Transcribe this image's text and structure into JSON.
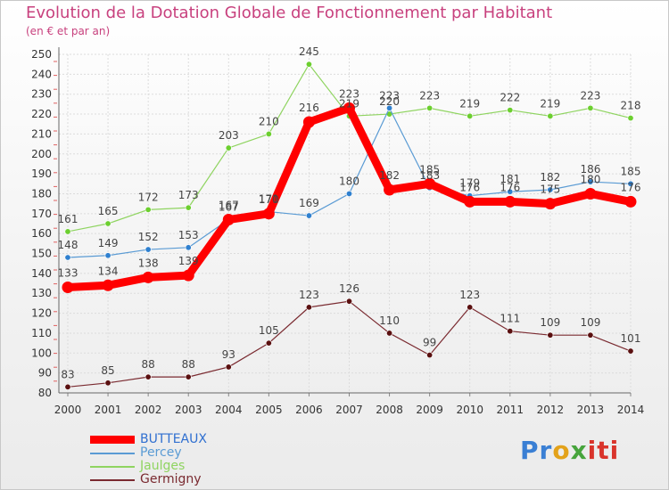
{
  "chart_data": {
    "type": "line",
    "title": "Evolution de la Dotation Globale de Fonctionnement par Habitant",
    "subtitle": "(en € et par an)",
    "xlabel": "",
    "ylabel": "",
    "x": [
      "2000",
      "2001",
      "2002",
      "2003",
      "2004",
      "2005",
      "2006",
      "2007",
      "2008",
      "2009",
      "2010",
      "2011",
      "2012",
      "2013",
      "2014"
    ],
    "ylim": [
      80,
      250
    ],
    "yticks": [
      80,
      90,
      100,
      110,
      120,
      130,
      140,
      150,
      160,
      170,
      180,
      190,
      200,
      210,
      220,
      230,
      240,
      250
    ],
    "grid": true,
    "legend_position": "bottom-left",
    "series": [
      {
        "name": "BUTTEAUX",
        "color": "#ff0000",
        "values": [
          133,
          134,
          138,
          139,
          167,
          170,
          216,
          223,
          182,
          185,
          176,
          176,
          175,
          180,
          176
        ]
      },
      {
        "name": "Percey",
        "color": "#5a9bd4",
        "values": [
          148,
          149,
          152,
          153,
          167,
          171,
          169,
          180,
          223,
          183,
          179,
          181,
          182,
          186,
          185
        ]
      },
      {
        "name": "Jaulges",
        "color": "#8fd460",
        "values": [
          161,
          165,
          172,
          173,
          203,
          210,
          245,
          219,
          220,
          223,
          219,
          222,
          219,
          223,
          218
        ]
      },
      {
        "name": "Germigny",
        "color": "#7a2a30",
        "values": [
          83,
          85,
          88,
          88,
          93,
          105,
          123,
          126,
          110,
          99,
          123,
          111,
          109,
          109,
          101
        ]
      }
    ]
  },
  "logo": {
    "text": "Proxiti",
    "parts": [
      "Pr",
      "o",
      "x",
      "iti"
    ]
  }
}
